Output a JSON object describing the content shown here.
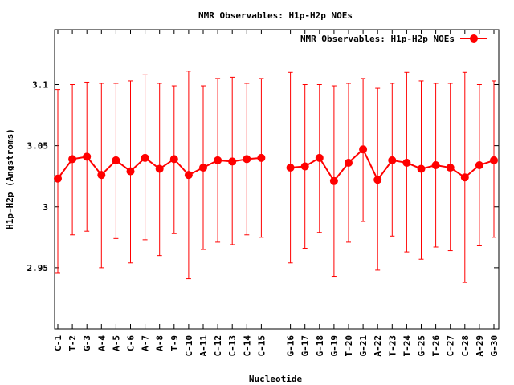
{
  "chart_data": {
    "type": "line",
    "title": "NMR Observables: H1p-H2p NOEs",
    "xlabel": "Nucleotide",
    "ylabel": "H1p-H2p (Angstroms)",
    "ylim": [
      2.9,
      3.145
    ],
    "yticks": [
      2.95,
      3,
      3.05,
      3.1
    ],
    "ytick_labels": [
      "2.95",
      "3",
      "3.05",
      "3.1"
    ],
    "grid": false,
    "legend_position": "top-right",
    "series": [
      {
        "name": "NMR Observables: H1p-H2p NOEs",
        "color": "#ff0000",
        "segments": [
          {
            "categories": [
              "C-1",
              "T-2",
              "G-3",
              "A-4",
              "A-5",
              "C-6",
              "A-7",
              "A-8",
              "T-9",
              "C-10",
              "A-11",
              "C-12",
              "C-13",
              "C-14",
              "C-15"
            ],
            "values": [
              3.023,
              3.039,
              3.041,
              3.026,
              3.038,
              3.029,
              3.04,
              3.031,
              3.039,
              3.026,
              3.032,
              3.038,
              3.037,
              3.039,
              3.04
            ],
            "err_low": [
              2.946,
              2.977,
              2.98,
              2.95,
              2.974,
              2.954,
              2.973,
              2.96,
              2.978,
              2.941,
              2.965,
              2.971,
              2.969,
              2.977,
              2.975
            ],
            "err_high": [
              3.096,
              3.1,
              3.102,
              3.101,
              3.101,
              3.103,
              3.108,
              3.101,
              3.099,
              3.111,
              3.099,
              3.105,
              3.106,
              3.101,
              3.105
            ]
          },
          {
            "categories": [
              "G-16",
              "G-17",
              "G-18",
              "G-19",
              "T-20",
              "G-21",
              "A-22",
              "T-23",
              "T-24",
              "G-25",
              "T-26",
              "C-27",
              "C-28",
              "A-29",
              "G-30"
            ],
            "values": [
              3.032,
              3.033,
              3.04,
              3.021,
              3.036,
              3.047,
              3.022,
              3.038,
              3.036,
              3.031,
              3.034,
              3.032,
              3.024,
              3.034,
              3.038
            ],
            "err_low": [
              2.954,
              2.966,
              2.979,
              2.943,
              2.971,
              2.988,
              2.948,
              2.976,
              2.963,
              2.957,
              2.967,
              2.964,
              2.938,
              2.968,
              2.975
            ],
            "err_high": [
              3.11,
              3.1,
              3.1,
              3.099,
              3.101,
              3.105,
              3.097,
              3.101,
              3.11,
              3.103,
              3.101,
              3.101,
              3.11,
              3.1,
              3.103
            ]
          }
        ]
      }
    ]
  }
}
